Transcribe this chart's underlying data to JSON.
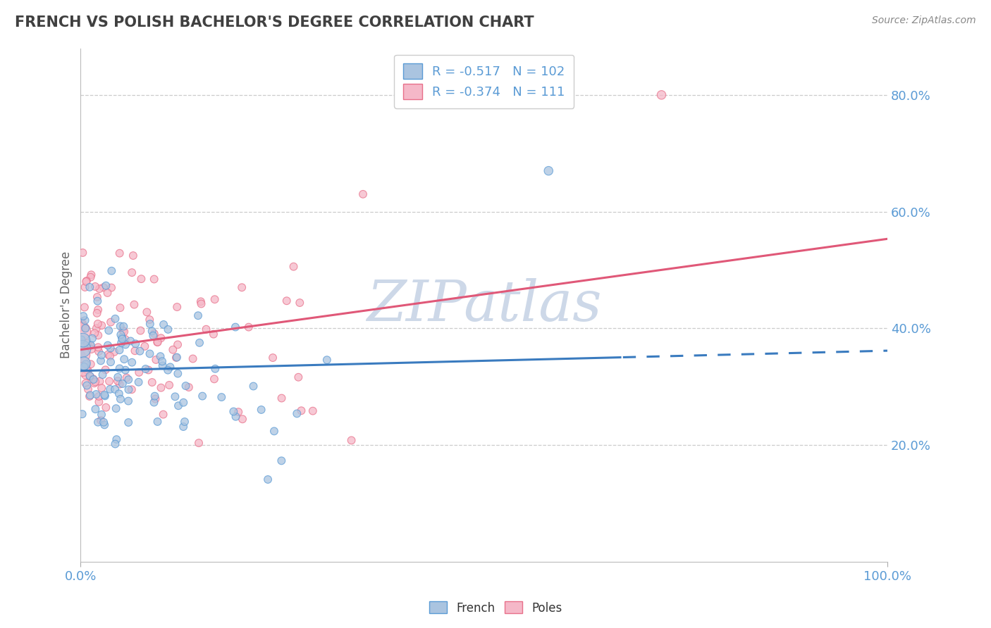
{
  "title": "FRENCH VS POLISH BACHELOR'S DEGREE CORRELATION CHART",
  "source_text": "Source: ZipAtlas.com",
  "ylabel": "Bachelor's Degree",
  "french_R": -0.517,
  "french_N": 102,
  "poles_R": -0.374,
  "poles_N": 111,
  "french_color": "#aac4e0",
  "poles_color": "#f5b8c8",
  "french_edge_color": "#5b9bd5",
  "poles_edge_color": "#e8708a",
  "french_line_color": "#3a7bbf",
  "poles_line_color": "#e05878",
  "bg_color": "#ffffff",
  "grid_color": "#cccccc",
  "title_color": "#404040",
  "axis_tick_color": "#5b9bd5",
  "watermark_color": "#cdd8e8",
  "yticks": [
    0.2,
    0.4,
    0.6,
    0.8
  ],
  "ytick_labels": [
    "20.0%",
    "40.0%",
    "60.0%",
    "80.0%"
  ],
  "ylim": [
    0.0,
    0.88
  ],
  "xlim": [
    0.0,
    1.0
  ]
}
